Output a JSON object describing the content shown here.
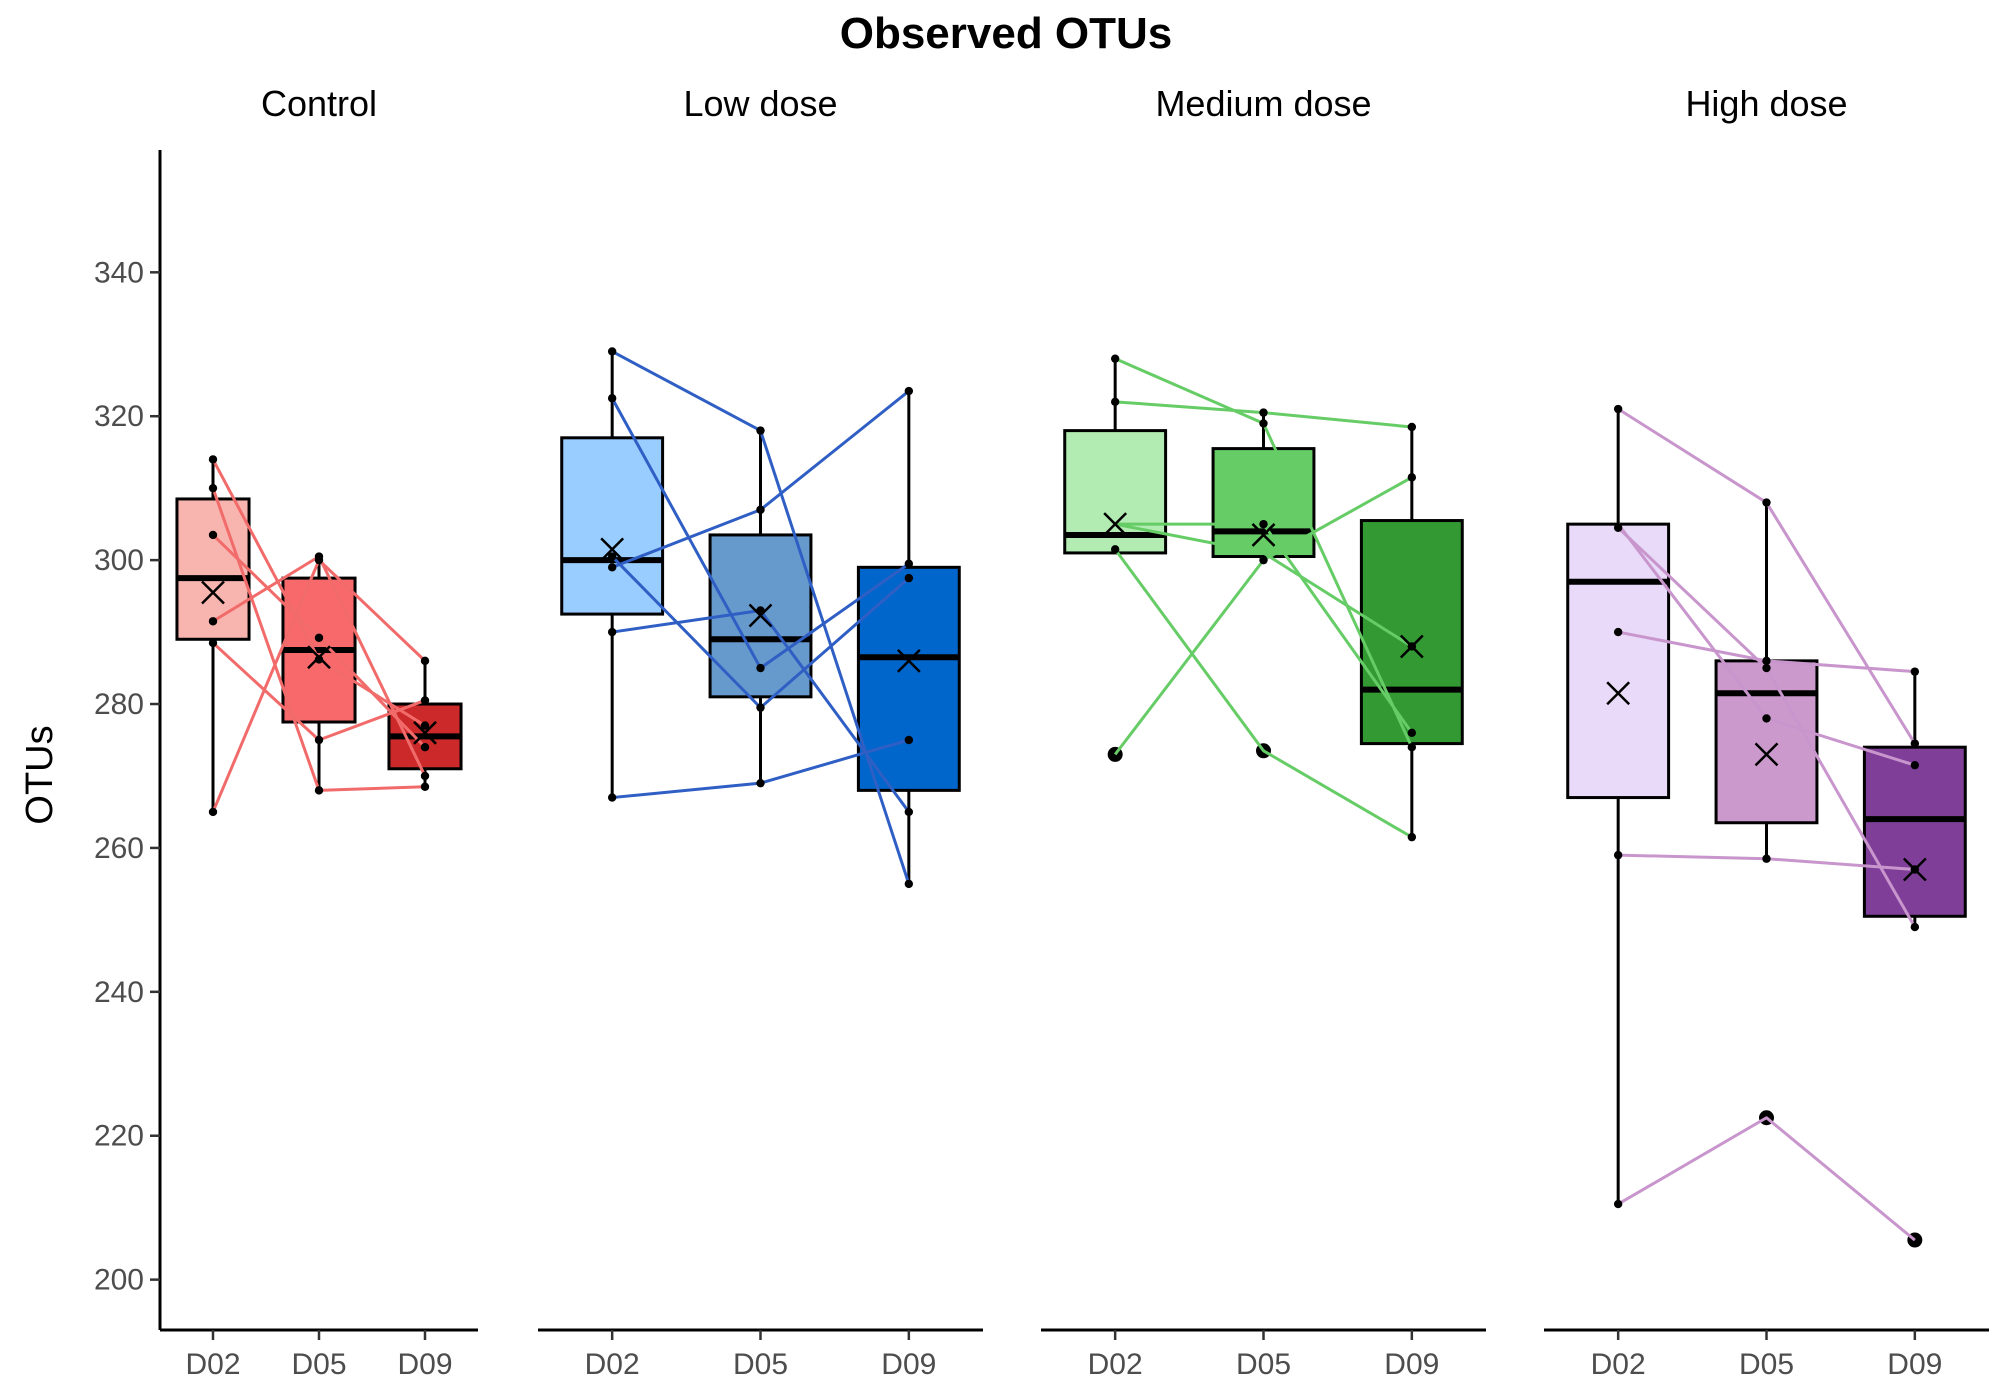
{
  "chart_data": {
    "type": "box",
    "title": "Observed OTUs",
    "ylabel": "OTUs",
    "xlabel": "",
    "ylim": [
      193,
      357
    ],
    "yticks": [
      200,
      220,
      240,
      260,
      280,
      300,
      320,
      340
    ],
    "grid": false,
    "legend": "none",
    "categories": [
      "D02",
      "D05",
      "D09"
    ],
    "facets": [
      {
        "label": "Control",
        "colors": [
          "#f8b4ae",
          "#f8696b",
          "#cc2a2a"
        ],
        "line_color": "#f26b6b",
        "boxes": [
          {
            "q1": 289,
            "median": 297.5,
            "q3": 308.5,
            "wlow": 265,
            "whigh": 314,
            "mean": 295.5,
            "points": [
              314,
              310,
              303.5,
              291.5,
              288.5,
              265
            ],
            "outliers": []
          },
          {
            "q1": 277.5,
            "median": 287.5,
            "q3": 297.5,
            "wlow": 268,
            "whigh": 300.5,
            "mean": 286.5,
            "points": [
              300.5,
              300,
              289.2,
              286.2,
              275,
              268
            ],
            "outliers": []
          },
          {
            "q1": 271,
            "median": 275.5,
            "q3": 280,
            "wlow": 268.5,
            "whigh": 286,
            "mean": 276,
            "points": [
              286,
              280.5,
              277,
              274,
              270,
              268.5
            ],
            "outliers": []
          }
        ],
        "subjects": [
          [
            314,
            286.2,
            277
          ],
          [
            310,
            268,
            268.5
          ],
          [
            303.5,
            289.2,
            274
          ],
          [
            291.5,
            300.5,
            270
          ],
          [
            288.5,
            275,
            280.5
          ],
          [
            265,
            300,
            286
          ]
        ]
      },
      {
        "label": "Low dose",
        "colors": [
          "#99ccff",
          "#6699cc",
          "#0066cc"
        ],
        "line_color": "#2f5fc4",
        "boxes": [
          {
            "q1": 292.5,
            "median": 300,
            "q3": 317,
            "wlow": 267,
            "whigh": 329,
            "mean": 301.5,
            "points": [
              329,
              322.5,
              300.5,
              299,
              290,
              267
            ],
            "outliers": []
          },
          {
            "q1": 281,
            "median": 289,
            "q3": 303.5,
            "wlow": 269,
            "whigh": 318,
            "mean": 292.3,
            "points": [
              318,
              307,
              293,
              285,
              279.5,
              269
            ],
            "outliers": []
          },
          {
            "q1": 268,
            "median": 286.5,
            "q3": 299,
            "wlow": 255,
            "whigh": 323.5,
            "mean": 286,
            "points": [
              323.5,
              299.5,
              297.5,
              275,
              265,
              255
            ],
            "outliers": []
          }
        ],
        "subjects": [
          [
            329,
            318,
            255
          ],
          [
            322.5,
            285,
            299.5
          ],
          [
            300.5,
            279.5,
            297.5
          ],
          [
            299,
            307,
            323.5
          ],
          [
            290,
            293,
            265
          ],
          [
            267,
            269,
            275
          ]
        ]
      },
      {
        "label": "Medium dose",
        "colors": [
          "#b3ecb3",
          "#66cc66",
          "#339933"
        ],
        "line_color": "#66cc66",
        "boxes": [
          {
            "q1": 301,
            "median": 303.5,
            "q3": 318,
            "wlow": 301,
            "whigh": 328,
            "mean": 305,
            "points": [
              328,
              322,
              301.5
            ],
            "outliers": [
              273
            ]
          },
          {
            "q1": 300.5,
            "median": 304,
            "q3": 315.5,
            "wlow": 300,
            "whigh": 320.5,
            "mean": 303.5,
            "points": [
              320.5,
              319,
              305,
              300
            ],
            "outliers": [
              273.5
            ]
          },
          {
            "q1": 274.5,
            "median": 282,
            "q3": 305.5,
            "wlow": 261.5,
            "whigh": 318.5,
            "mean": 288,
            "points": [
              318.5,
              311.5,
              288,
              276,
              274,
              261.5
            ],
            "outliers": []
          }
        ],
        "subjects": [
          [
            328,
            319,
            274
          ],
          [
            322,
            320.5,
            318.5
          ],
          [
            305,
            305,
            276
          ],
          [
            301.5,
            273.5,
            261.5
          ],
          [
            273,
            300,
            311.5
          ],
          [
            305,
            301,
            288
          ]
        ]
      },
      {
        "label": "High dose",
        "colors": [
          "#e8daf8",
          "#cc99cc",
          "#7f3f98"
        ],
        "line_color": "#c896cc",
        "boxes": [
          {
            "q1": 267,
            "median": 297,
            "q3": 305,
            "wlow": 210.5,
            "whigh": 321,
            "mean": 281.5,
            "points": [
              321,
              304.5,
              290,
              259,
              210.5
            ],
            "outliers": []
          },
          {
            "q1": 263.5,
            "median": 281.5,
            "q3": 286,
            "wlow": 258.5,
            "whigh": 308,
            "mean": 273,
            "points": [
              308,
              286,
              285,
              278,
              258.5
            ],
            "outliers": [
              222.5
            ]
          },
          {
            "q1": 250.5,
            "median": 264,
            "q3": 274,
            "wlow": 249,
            "whigh": 284.5,
            "mean": 257,
            "points": [
              284.5,
              274.5,
              271.5,
              257,
              249
            ],
            "outliers": [
              205.5
            ]
          }
        ],
        "subjects": [
          [
            321,
            308,
            274.5
          ],
          [
            304.5,
            285,
            249
          ],
          [
            290,
            286,
            284.5
          ],
          [
            259,
            258.5,
            257
          ],
          [
            210.5,
            222.5,
            205.5
          ],
          [
            305,
            278,
            271.5
          ]
        ]
      }
    ]
  }
}
